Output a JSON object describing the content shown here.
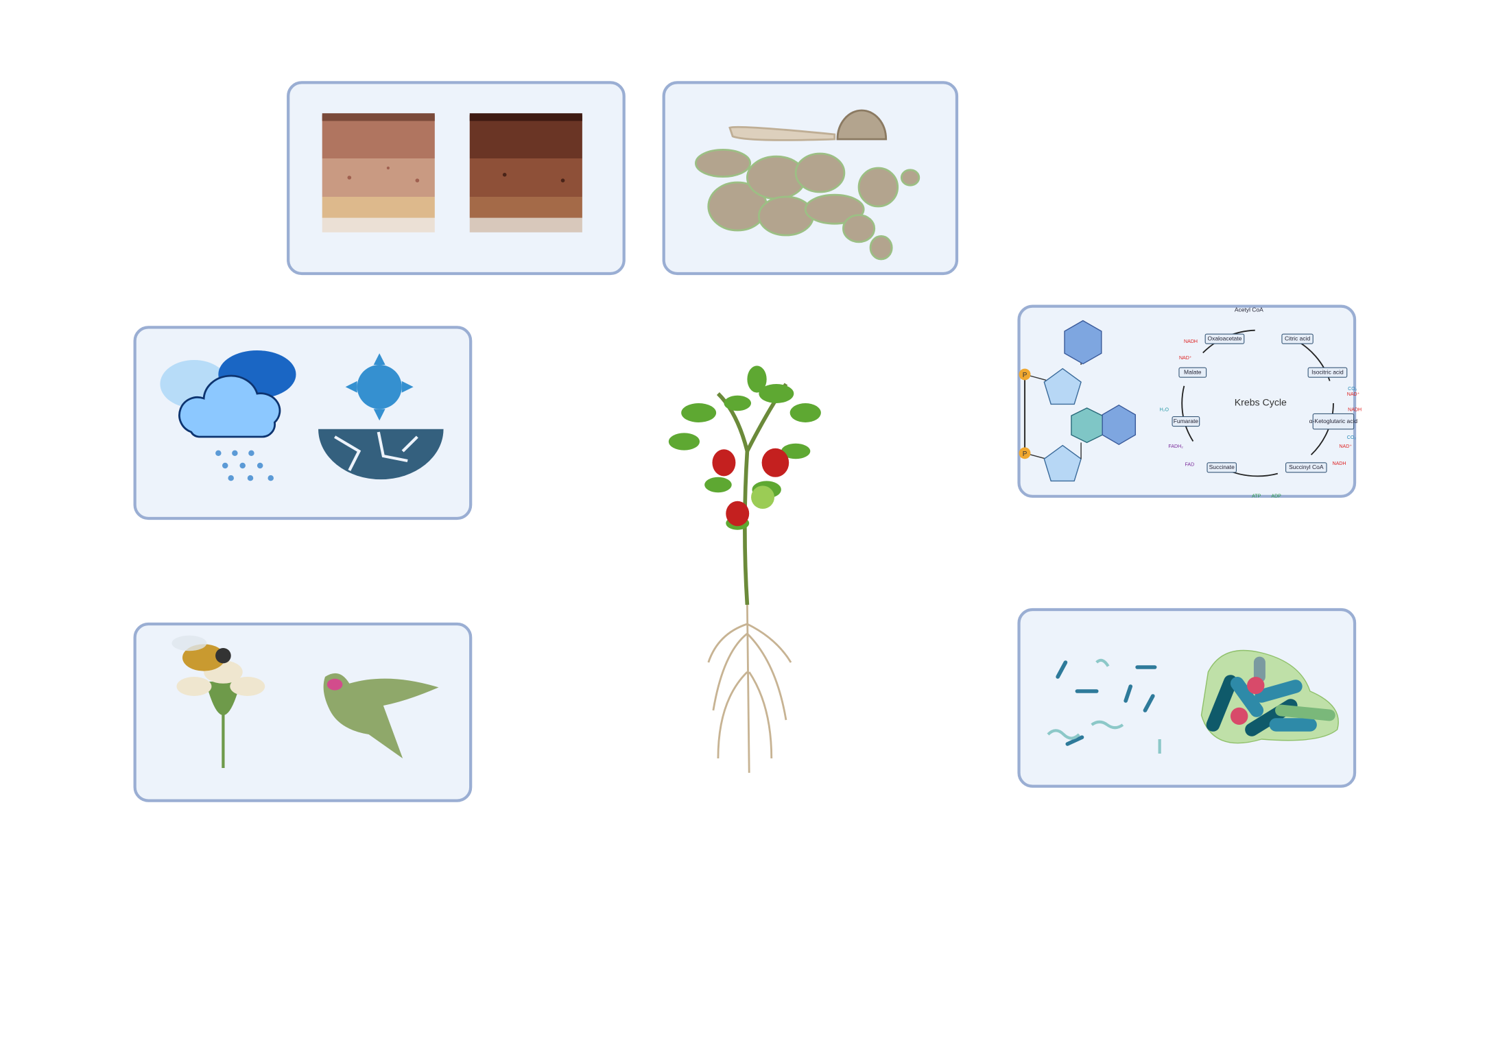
{
  "krebs": {
    "title": "Krebs Cycle",
    "input": "Acetyl CoA",
    "intermediates": [
      "Oxaloacetate",
      "Citric acid",
      "Isocitric acid",
      "α-Ketoglutaric acid",
      "Succinyl CoA",
      "Succinate",
      "Fumarate",
      "Malate"
    ],
    "cofactors": [
      "NADH",
      "NAD⁺",
      "H₂O",
      "FADH₂",
      "FAD",
      "ATP",
      "ADP",
      "CO₂",
      "NAD⁺",
      "NADH",
      "CO₂",
      "NAD⁺",
      "NADH"
    ]
  },
  "molecule": {
    "phosphates": [
      "P",
      "P"
    ]
  }
}
